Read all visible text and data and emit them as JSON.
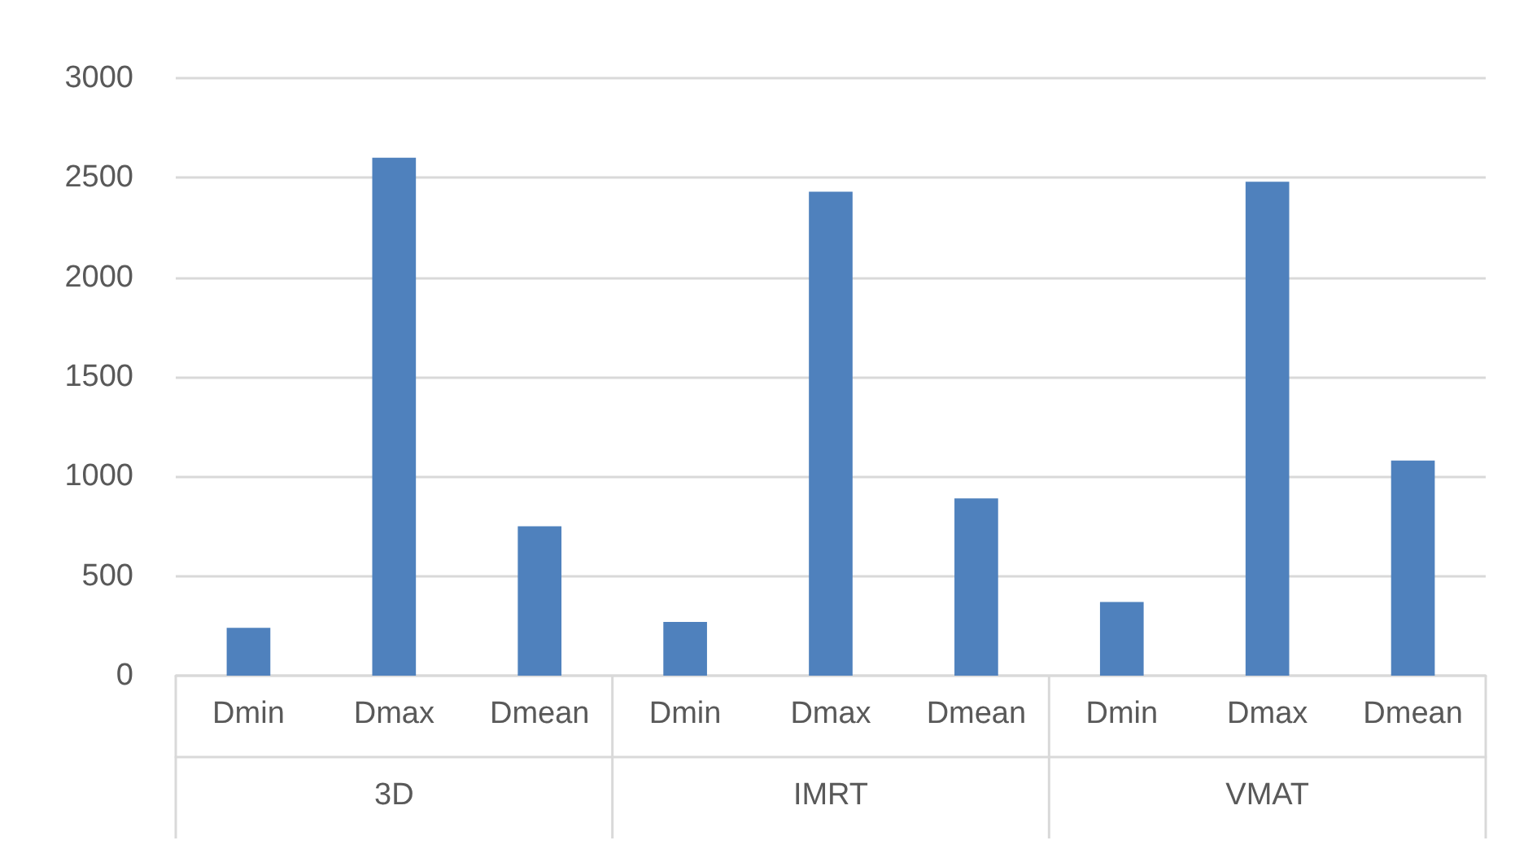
{
  "chart_data": {
    "type": "bar",
    "categories": [
      "Dmin",
      "Dmax",
      "Dmean",
      "Dmin",
      "Dmax",
      "Dmean",
      "Dmin",
      "Dmax",
      "Dmean"
    ],
    "values": [
      240,
      2600,
      750,
      270,
      2430,
      890,
      370,
      2480,
      1080
    ],
    "color": "#4f81bd",
    "annotations": [
      "3D",
      "IMRT",
      "VMAT"
    ],
    "ylim": [
      0,
      3000
    ],
    "yticks": [
      0,
      500,
      1000,
      1500,
      2000,
      2500,
      3000
    ],
    "grid": "y"
  }
}
